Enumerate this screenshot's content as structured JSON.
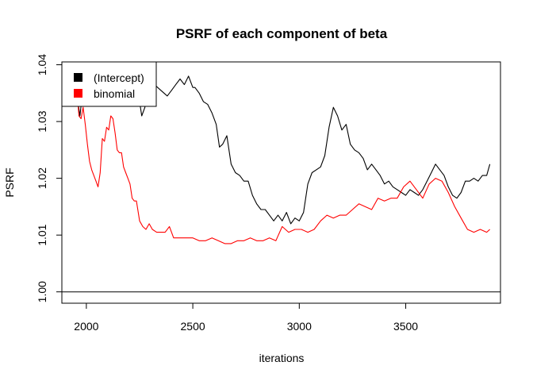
{
  "chart_data": {
    "type": "line",
    "title": "PSRF of each component of beta",
    "xlabel": "iterations",
    "ylabel": "PSRF",
    "xlim": [
      1885,
      3945
    ],
    "ylim": [
      0.998,
      1.0405
    ],
    "x_ticks": [
      2000,
      2500,
      3000,
      3500
    ],
    "x_tick_labels": [
      "2000",
      "2500",
      "3000",
      "3500"
    ],
    "y_ticks": [
      1.0,
      1.01,
      1.02,
      1.03,
      1.04
    ],
    "y_tick_labels": [
      "1.00",
      "1.01",
      "1.02",
      "1.03",
      "1.04"
    ],
    "reference_line": 1.0,
    "grid": false,
    "legend": {
      "position": "top-left",
      "entries": [
        {
          "label": "(Intercept)",
          "color": "#000000"
        },
        {
          "label": "binomial",
          "color": "#ff0000"
        }
      ]
    },
    "series": [
      {
        "name": "(Intercept)",
        "color": "#000000",
        "x": [
          1885,
          1950,
          1970,
          1980,
          1990,
          2000,
          2010,
          2020,
          2030,
          2040,
          2060,
          2080,
          2100,
          2120,
          2150,
          2170,
          2200,
          2220,
          2240,
          2260,
          2275,
          2290,
          2320,
          2350,
          2380,
          2400,
          2420,
          2440,
          2460,
          2480,
          2500,
          2510,
          2530,
          2550,
          2570,
          2590,
          2610,
          2625,
          2640,
          2660,
          2680,
          2700,
          2720,
          2740,
          2760,
          2780,
          2800,
          2820,
          2840,
          2860,
          2880,
          2900,
          2920,
          2940,
          2960,
          2980,
          3000,
          3020,
          3040,
          3060,
          3080,
          3100,
          3120,
          3140,
          3160,
          3180,
          3200,
          3220,
          3240,
          3260,
          3280,
          3300,
          3320,
          3340,
          3360,
          3380,
          3400,
          3420,
          3440,
          3460,
          3480,
          3500,
          3520,
          3540,
          3560,
          3580,
          3600,
          3620,
          3640,
          3660,
          3680,
          3700,
          3720,
          3740,
          3760,
          3780,
          3800,
          3820,
          3840,
          3860,
          3880,
          3895
        ],
        "values": [
          1.0395,
          1.036,
          1.031,
          1.0345,
          1.037,
          1.0365,
          1.033,
          1.038,
          1.034,
          1.037,
          1.036,
          1.038,
          1.0365,
          1.036,
          1.038,
          1.034,
          1.0385,
          1.033,
          1.036,
          1.031,
          1.0325,
          1.037,
          1.0365,
          1.0355,
          1.0345,
          1.0355,
          1.0365,
          1.0375,
          1.0365,
          1.038,
          1.036,
          1.036,
          1.035,
          1.0335,
          1.033,
          1.0315,
          1.0295,
          1.0255,
          1.026,
          1.0275,
          1.0225,
          1.021,
          1.0205,
          1.0195,
          1.0195,
          1.017,
          1.0155,
          1.0145,
          1.0145,
          1.0135,
          1.0125,
          1.0135,
          1.0125,
          1.014,
          1.012,
          1.013,
          1.0125,
          1.014,
          1.019,
          1.021,
          1.0215,
          1.022,
          1.024,
          1.029,
          1.0325,
          1.031,
          1.0285,
          1.0295,
          1.026,
          1.025,
          1.0245,
          1.0235,
          1.0215,
          1.0225,
          1.0215,
          1.0205,
          1.019,
          1.0195,
          1.0185,
          1.018,
          1.0175,
          1.017,
          1.018,
          1.0175,
          1.017,
          1.018,
          1.0195,
          1.021,
          1.0225,
          1.0215,
          1.0205,
          1.0185,
          1.017,
          1.0165,
          1.0175,
          1.0195,
          1.0195,
          1.02,
          1.0195,
          1.0205,
          1.0205,
          1.0225
        ]
      },
      {
        "name": "binomial",
        "color": "#ff0000",
        "x": [
          1885,
          1950,
          1965,
          1975,
          1985,
          1995,
          2005,
          2015,
          2025,
          2035,
          2045,
          2055,
          2065,
          2075,
          2085,
          2095,
          2105,
          2115,
          2125,
          2135,
          2145,
          2155,
          2165,
          2175,
          2185,
          2195,
          2205,
          2215,
          2225,
          2235,
          2250,
          2265,
          2280,
          2295,
          2310,
          2330,
          2350,
          2370,
          2390,
          2410,
          2440,
          2470,
          2500,
          2530,
          2560,
          2590,
          2620,
          2650,
          2680,
          2710,
          2740,
          2770,
          2800,
          2830,
          2860,
          2890,
          2920,
          2950,
          2980,
          3010,
          3040,
          3070,
          3100,
          3130,
          3160,
          3190,
          3220,
          3250,
          3280,
          3310,
          3340,
          3370,
          3400,
          3430,
          3460,
          3490,
          3520,
          3550,
          3580,
          3610,
          3640,
          3670,
          3700,
          3730,
          3760,
          3790,
          3820,
          3850,
          3880,
          3895
        ],
        "values": [
          1.0395,
          1.0385,
          1.031,
          1.0305,
          1.0325,
          1.0295,
          1.026,
          1.023,
          1.0215,
          1.0205,
          1.0195,
          1.0185,
          1.021,
          1.027,
          1.0265,
          1.029,
          1.0285,
          1.031,
          1.0305,
          1.028,
          1.025,
          1.0245,
          1.0245,
          1.022,
          1.021,
          1.02,
          1.019,
          1.0165,
          1.016,
          1.016,
          1.0125,
          1.0115,
          1.011,
          1.012,
          1.011,
          1.0105,
          1.0105,
          1.0105,
          1.0115,
          1.0095,
          1.0095,
          1.0095,
          1.0095,
          1.009,
          1.009,
          1.0095,
          1.009,
          1.0085,
          1.0085,
          1.009,
          1.009,
          1.0095,
          1.009,
          1.009,
          1.0095,
          1.009,
          1.0115,
          1.0105,
          1.011,
          1.011,
          1.0105,
          1.011,
          1.0125,
          1.0135,
          1.013,
          1.0135,
          1.0135,
          1.0145,
          1.0155,
          1.015,
          1.0145,
          1.0165,
          1.016,
          1.0165,
          1.0165,
          1.0185,
          1.0195,
          1.018,
          1.0165,
          1.019,
          1.02,
          1.0195,
          1.0175,
          1.015,
          1.013,
          1.011,
          1.0105,
          1.011,
          1.0105,
          1.011
        ]
      }
    ]
  }
}
